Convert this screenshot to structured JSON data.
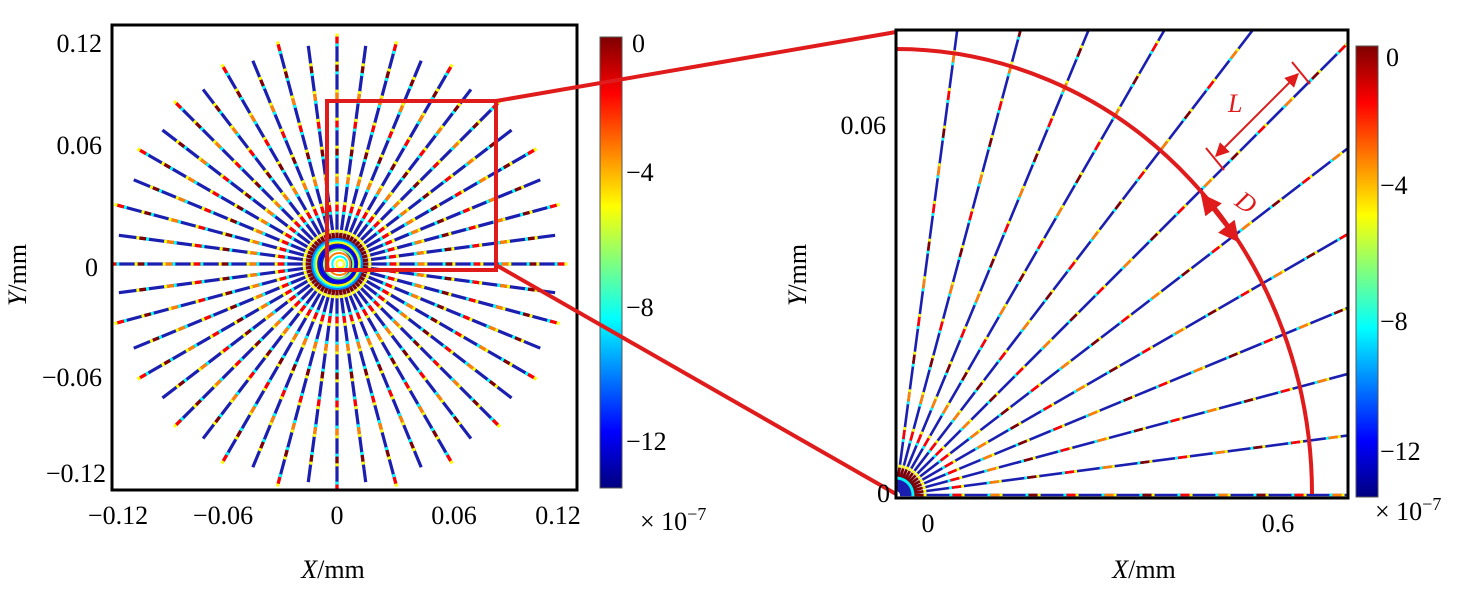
{
  "left_panel": {
    "xticks": [
      "−0.12",
      "−0.06",
      "0",
      "0.06",
      "0.12"
    ],
    "yticks": [
      "0.12",
      "0.06",
      "0",
      "−0.06",
      "−0.12"
    ],
    "xlabel_var": "X",
    "xlabel_unit": "/mm",
    "ylabel_var": "Y",
    "ylabel_unit": "/mm",
    "spoke_count": 48
  },
  "left_colorbar": {
    "ticks": [
      "0",
      "−4",
      "−8",
      "−12"
    ],
    "scale_prefix": "× 10",
    "scale_exp": "−7"
  },
  "right_panel": {
    "xticks": [
      "0",
      "0.6"
    ],
    "yticks": [
      "0.06",
      "0"
    ],
    "xlabel_var": "X",
    "xlabel_unit": "/mm",
    "ylabel_var": "Y",
    "ylabel_unit": "/mm",
    "annotation_L": "L",
    "annotation_D": "D",
    "spoke_count": 13
  },
  "right_colorbar": {
    "ticks": [
      "0",
      "−4",
      "−8",
      "−12"
    ],
    "scale_prefix": "× 10",
    "scale_exp": "−7"
  },
  "colors": {
    "highlight": "#e01b1b",
    "frame": "#000000",
    "spoke_base": "#1a1fb0",
    "colormap": [
      "#00007f",
      "#0000ff",
      "#007fff",
      "#00ffff",
      "#7fff7f",
      "#ffff00",
      "#ff7f00",
      "#ff0000",
      "#7f0000"
    ]
  }
}
